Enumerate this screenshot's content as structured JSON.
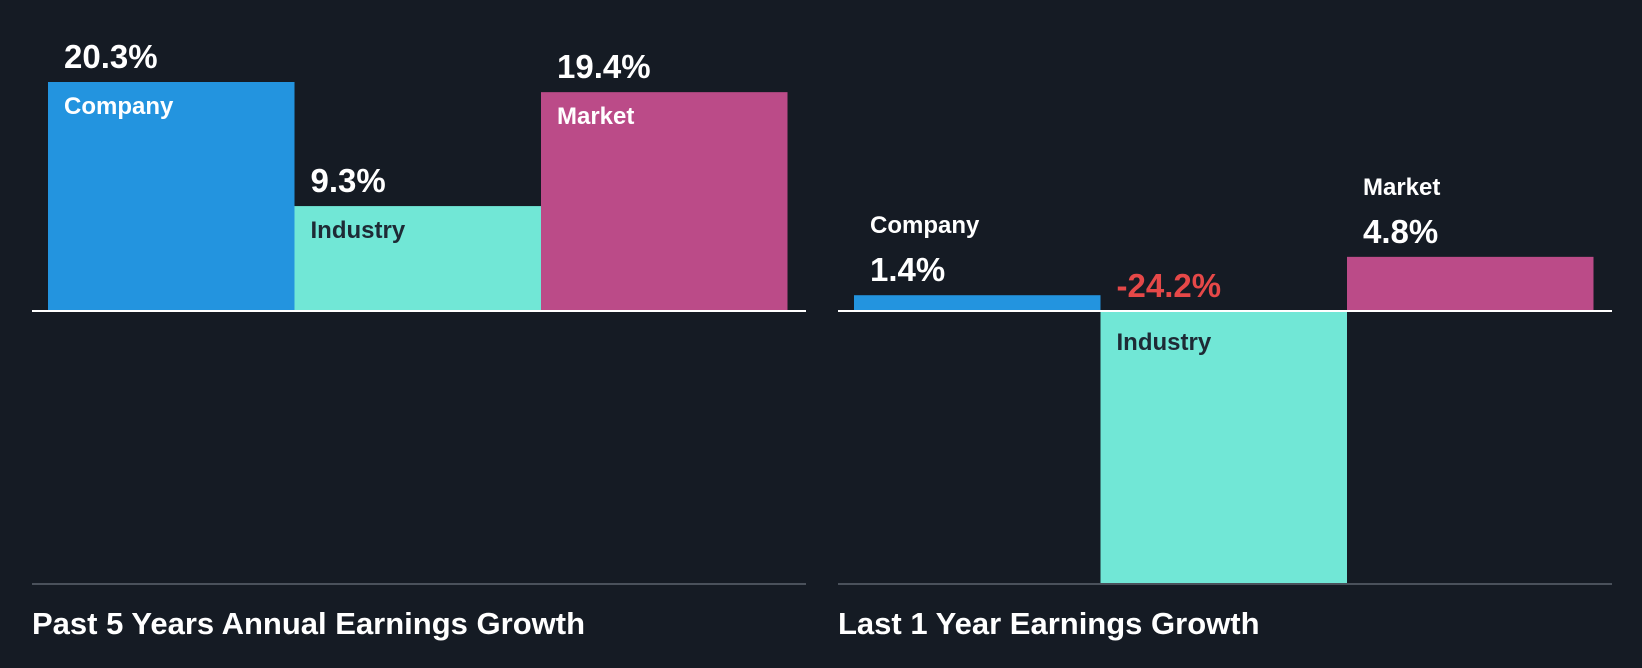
{
  "colors": {
    "background": "#151b24",
    "company": "#2394df",
    "industry": "#71e7d6",
    "market": "#bb4b88",
    "negative_value": "#e64848",
    "label_dark": "#1e2a35",
    "label_light": "#ffffff",
    "baseline": "#ffffff",
    "axis_bottom": "#4a515b"
  },
  "chart_data": [
    {
      "type": "bar",
      "title": "Past 5 Years Annual Earnings Growth",
      "categories": [
        "Company",
        "Industry",
        "Market"
      ],
      "values": [
        20.3,
        9.3,
        19.4
      ],
      "value_labels": [
        "20.3%",
        "9.3%",
        "19.4%"
      ],
      "unit": "%",
      "ylim": [
        -24.2,
        20.3
      ],
      "grid": false,
      "legend": "none"
    },
    {
      "type": "bar",
      "title": "Last 1 Year Earnings Growth",
      "categories": [
        "Company",
        "Industry",
        "Market"
      ],
      "values": [
        1.4,
        -24.2,
        4.8
      ],
      "value_labels": [
        "1.4%",
        "-24.2%",
        "4.8%"
      ],
      "unit": "%",
      "ylim": [
        -24.2,
        20.3
      ],
      "grid": false,
      "legend": "none"
    }
  ]
}
